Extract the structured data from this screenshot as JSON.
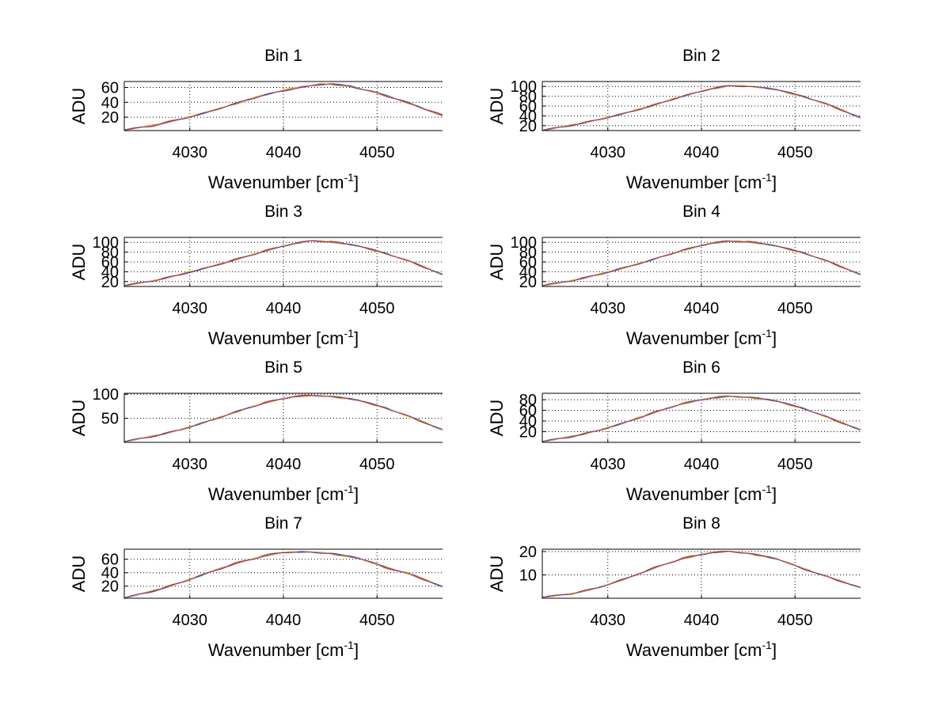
{
  "figure": {
    "xlabel": "Wavenumber [cm",
    "xlabel_sup": "-1",
    "xlabel_close": "]",
    "ylabel": "ADU"
  },
  "chart_data": [
    {
      "type": "line",
      "title": "Bin 1",
      "xlabel": "Wavenumber [cm-1]",
      "ylabel": "ADU",
      "xlim": [
        4023,
        4057
      ],
      "ylim": [
        2,
        68
      ],
      "xticks": [
        4030,
        4040,
        4050
      ],
      "yticks": [
        20,
        40,
        60
      ],
      "grid": true,
      "x": [
        4023,
        4026,
        4029,
        4032,
        4035,
        4038,
        4041,
        4044,
        4045,
        4047,
        4050,
        4053,
        4057
      ],
      "series": [
        {
          "name": "series-1",
          "color": "#0072BD",
          "values": [
            3,
            9,
            17,
            27,
            39,
            50,
            59,
            64,
            65,
            62,
            53,
            41,
            22
          ]
        },
        {
          "name": "series-2",
          "color": "#D95319",
          "values": [
            3,
            9,
            18,
            27,
            39,
            50,
            59,
            64,
            65,
            62,
            52,
            41,
            23
          ]
        },
        {
          "name": "series-3",
          "color": "#EDB120",
          "values": [
            3,
            9,
            17,
            28,
            38,
            51,
            59,
            65,
            64,
            61,
            53,
            40,
            22
          ]
        },
        {
          "name": "series-4",
          "color": "#7E2F8E",
          "values": [
            3,
            8,
            17,
            27,
            39,
            50,
            58,
            64,
            65,
            62,
            53,
            41,
            22
          ]
        }
      ]
    },
    {
      "type": "line",
      "title": "Bin 2",
      "xlabel": "Wavenumber [cm-1]",
      "ylabel": "ADU",
      "xlim": [
        4023,
        4057
      ],
      "ylim": [
        10,
        110
      ],
      "xticks": [
        4030,
        4040,
        4050
      ],
      "yticks": [
        20,
        40,
        60,
        80,
        100
      ],
      "grid": true,
      "x": [
        4023,
        4026,
        4029,
        4032,
        4035,
        4038,
        4041,
        4043,
        4045,
        4048,
        4051,
        4054,
        4057
      ],
      "series": [
        {
          "name": "series-1",
          "color": "#0072BD",
          "values": [
            11,
            20,
            32,
            46,
            62,
            80,
            95,
            101,
            101,
            94,
            79,
            60,
            36
          ]
        },
        {
          "name": "series-2",
          "color": "#D95319",
          "values": [
            11,
            20,
            33,
            46,
            63,
            80,
            96,
            102,
            100,
            94,
            79,
            59,
            36
          ]
        },
        {
          "name": "series-3",
          "color": "#EDB120",
          "values": [
            11,
            21,
            32,
            47,
            62,
            81,
            95,
            102,
            101,
            93,
            78,
            60,
            37
          ]
        },
        {
          "name": "series-4",
          "color": "#7E2F8E",
          "values": [
            11,
            20,
            32,
            46,
            62,
            80,
            95,
            101,
            100,
            94,
            79,
            60,
            36
          ]
        }
      ]
    },
    {
      "type": "line",
      "title": "Bin 3",
      "xlabel": "Wavenumber [cm-1]",
      "ylabel": "ADU",
      "xlim": [
        4023,
        4057
      ],
      "ylim": [
        10,
        110
      ],
      "xticks": [
        4030,
        4040,
        4050
      ],
      "yticks": [
        20,
        40,
        60,
        80,
        100
      ],
      "grid": true,
      "x": [
        4023,
        4026,
        4029,
        4032,
        4035,
        4038,
        4041,
        4043,
        4045,
        4048,
        4051,
        4054,
        4057
      ],
      "series": [
        {
          "name": "series-1",
          "color": "#0072BD",
          "values": [
            12,
            21,
            34,
            49,
            65,
            82,
            97,
            103,
            101,
            93,
            77,
            58,
            34
          ]
        },
        {
          "name": "series-2",
          "color": "#D95319",
          "values": [
            12,
            22,
            34,
            49,
            66,
            83,
            98,
            103,
            102,
            93,
            77,
            57,
            34
          ]
        },
        {
          "name": "series-3",
          "color": "#EDB120",
          "values": [
            12,
            21,
            35,
            50,
            65,
            82,
            97,
            104,
            101,
            92,
            76,
            58,
            35
          ]
        },
        {
          "name": "series-4",
          "color": "#7E2F8E",
          "values": [
            12,
            21,
            34,
            49,
            65,
            82,
            97,
            103,
            101,
            93,
            77,
            58,
            34
          ]
        }
      ]
    },
    {
      "type": "line",
      "title": "Bin 4",
      "xlabel": "Wavenumber [cm-1]",
      "ylabel": "ADU",
      "xlim": [
        4023,
        4057
      ],
      "ylim": [
        10,
        110
      ],
      "xticks": [
        4030,
        4040,
        4050
      ],
      "yticks": [
        20,
        40,
        60,
        80,
        100
      ],
      "grid": true,
      "x": [
        4023,
        4026,
        4029,
        4032,
        4035,
        4038,
        4041,
        4043,
        4045,
        4048,
        4051,
        4054,
        4057
      ],
      "series": [
        {
          "name": "series-1",
          "color": "#0072BD",
          "values": [
            12,
            21,
            34,
            49,
            66,
            84,
            98,
            102,
            101,
            93,
            78,
            58,
            34
          ]
        },
        {
          "name": "series-2",
          "color": "#D95319",
          "values": [
            12,
            22,
            34,
            50,
            66,
            84,
            99,
            103,
            102,
            93,
            78,
            57,
            34
          ]
        },
        {
          "name": "series-3",
          "color": "#EDB120",
          "values": [
            12,
            21,
            35,
            49,
            67,
            83,
            98,
            103,
            101,
            92,
            77,
            58,
            35
          ]
        },
        {
          "name": "series-4",
          "color": "#7E2F8E",
          "values": [
            12,
            21,
            34,
            49,
            66,
            84,
            98,
            102,
            101,
            93,
            78,
            58,
            34
          ]
        }
      ]
    },
    {
      "type": "line",
      "title": "Bin 5",
      "xlabel": "Wavenumber [cm-1]",
      "ylabel": "ADU",
      "xlim": [
        4023,
        4057
      ],
      "ylim": [
        0,
        102
      ],
      "xticks": [
        4030,
        4040,
        4050
      ],
      "yticks": [
        50,
        100
      ],
      "grid": true,
      "x": [
        4023,
        4026,
        4029,
        4032,
        4035,
        4038,
        4041,
        4043,
        4045,
        4048,
        4051,
        4054,
        4057
      ],
      "series": [
        {
          "name": "series-1",
          "color": "#0072BD",
          "values": [
            2,
            12,
            26,
            44,
            64,
            82,
            95,
            97,
            96,
            88,
            71,
            50,
            26
          ]
        },
        {
          "name": "series-2",
          "color": "#D95319",
          "values": [
            2,
            12,
            27,
            44,
            64,
            83,
            96,
            98,
            96,
            88,
            71,
            49,
            26
          ]
        },
        {
          "name": "series-3",
          "color": "#EDB120",
          "values": [
            2,
            13,
            26,
            45,
            63,
            82,
            95,
            97,
            95,
            87,
            70,
            50,
            27
          ]
        },
        {
          "name": "series-4",
          "color": "#7E2F8E",
          "values": [
            2,
            12,
            26,
            44,
            64,
            82,
            95,
            97,
            96,
            88,
            71,
            50,
            26
          ]
        }
      ]
    },
    {
      "type": "line",
      "title": "Bin 6",
      "xlabel": "Wavenumber [cm-1]",
      "ylabel": "ADU",
      "xlim": [
        4023,
        4057
      ],
      "ylim": [
        0,
        92
      ],
      "xticks": [
        4030,
        4040,
        4050
      ],
      "yticks": [
        20,
        40,
        60,
        80
      ],
      "grid": true,
      "x": [
        4023,
        4026,
        4029,
        4032,
        4035,
        4038,
        4041,
        4043,
        4045,
        4048,
        4051,
        4054,
        4057
      ],
      "series": [
        {
          "name": "series-1",
          "color": "#0072BD",
          "values": [
            2,
            10,
            22,
            38,
            56,
            73,
            83,
            86,
            85,
            78,
            63,
            44,
            23
          ]
        },
        {
          "name": "series-2",
          "color": "#D95319",
          "values": [
            2,
            10,
            23,
            38,
            57,
            73,
            84,
            87,
            85,
            78,
            63,
            43,
            23
          ]
        },
        {
          "name": "series-3",
          "color": "#EDB120",
          "values": [
            2,
            11,
            22,
            39,
            56,
            72,
            83,
            87,
            84,
            77,
            62,
            44,
            24
          ]
        },
        {
          "name": "series-4",
          "color": "#7E2F8E",
          "values": [
            2,
            10,
            22,
            38,
            56,
            73,
            83,
            86,
            85,
            78,
            63,
            44,
            23
          ]
        }
      ]
    },
    {
      "type": "line",
      "title": "Bin 7",
      "xlabel": "Wavenumber [cm-1]",
      "ylabel": "ADU",
      "xlim": [
        4023,
        4057
      ],
      "ylim": [
        2,
        75
      ],
      "xticks": [
        4030,
        4040,
        4050
      ],
      "yticks": [
        20,
        40,
        60
      ],
      "grid": true,
      "x": [
        4023,
        4026,
        4029,
        4032,
        4035,
        4038,
        4040,
        4042,
        4045,
        4048,
        4051,
        4054,
        4057
      ],
      "series": [
        {
          "name": "series-1",
          "color": "#0072BD",
          "values": [
            3,
            12,
            25,
            40,
            54,
            65,
            70,
            71,
            69,
            62,
            48,
            36,
            19
          ]
        },
        {
          "name": "series-2",
          "color": "#D95319",
          "values": [
            3,
            12,
            26,
            40,
            55,
            66,
            71,
            71,
            69,
            62,
            47,
            35,
            19
          ]
        },
        {
          "name": "series-3",
          "color": "#EDB120",
          "values": [
            3,
            13,
            25,
            41,
            54,
            65,
            70,
            72,
            68,
            61,
            48,
            36,
            20
          ]
        },
        {
          "name": "series-4",
          "color": "#7E2F8E",
          "values": [
            3,
            12,
            25,
            40,
            54,
            65,
            70,
            71,
            69,
            62,
            48,
            36,
            19
          ]
        }
      ]
    },
    {
      "type": "line",
      "title": "Bin 8",
      "xlabel": "Wavenumber [cm-1]",
      "ylabel": "ADU",
      "xlim": [
        4023,
        4057
      ],
      "ylim": [
        0,
        21
      ],
      "xticks": [
        4030,
        4040,
        4050
      ],
      "yticks": [
        10,
        20
      ],
      "grid": true,
      "x": [
        4023,
        4026,
        4029,
        4032,
        4035,
        4038,
        4041,
        4043,
        4045,
        4048,
        4051,
        4054,
        4057
      ],
      "series": [
        {
          "name": "series-1",
          "color": "#0072BD",
          "values": [
            0.5,
            1.8,
            4.5,
            8.5,
            13,
            17,
            19.5,
            20,
            19.3,
            17,
            12.5,
            8.5,
            4.5
          ]
        },
        {
          "name": "series-2",
          "color": "#D95319",
          "values": [
            0.5,
            1.9,
            4.6,
            8.6,
            13.2,
            17.2,
            19.7,
            20.1,
            19.2,
            16.9,
            12.4,
            8.4,
            4.5
          ]
        },
        {
          "name": "series-3",
          "color": "#EDB120",
          "values": [
            0.5,
            1.8,
            4.4,
            8.4,
            13.1,
            16.9,
            19.4,
            20.2,
            19.1,
            16.8,
            12.6,
            8.6,
            4.6
          ]
        },
        {
          "name": "series-4",
          "color": "#7E2F8E",
          "values": [
            0.5,
            1.8,
            4.5,
            8.5,
            13,
            17,
            19.5,
            20,
            19.3,
            17,
            12.5,
            8.5,
            4.5
          ]
        }
      ]
    }
  ]
}
